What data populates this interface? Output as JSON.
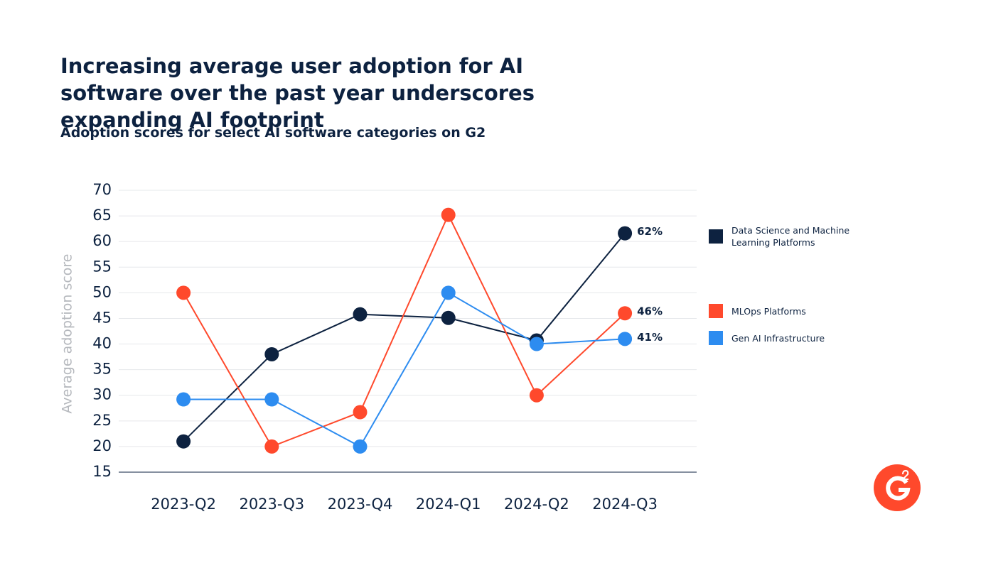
{
  "chart_data": {
    "type": "line",
    "title": "Increasing average user adoption for AI software over the past year underscores expanding AI footprint",
    "subtitle": "Adoption scores for select AI software categories on G2",
    "y_label": "Average adoption score",
    "categories": [
      "2023-Q2",
      "2023-Q3",
      "2023-Q4",
      "2024-Q1",
      "2024-Q2",
      "2024-Q3"
    ],
    "series": [
      {
        "name": "Data Science and Machine Learning Platforms",
        "color": "#0d2240",
        "values": [
          21,
          38,
          45.8,
          45.1,
          40.7,
          61.6
        ],
        "value_labels": [
          null,
          null,
          null,
          null,
          null,
          "62%"
        ]
      },
      {
        "name": "MLOps Platforms",
        "color": "#ff492c",
        "values": [
          50,
          20,
          26.7,
          65.2,
          30,
          46
        ],
        "value_labels": [
          null,
          null,
          null,
          null,
          null,
          "46%"
        ]
      },
      {
        "name": "Gen AI Infrastructure",
        "color": "#2d8cf0",
        "values": [
          29.2,
          29.2,
          20,
          50,
          40,
          41
        ],
        "value_labels": [
          null,
          null,
          null,
          null,
          null,
          "41%"
        ]
      }
    ],
    "ylim": [
      15,
      70
    ],
    "yticks": [
      15,
      20,
      25,
      30,
      35,
      40,
      45,
      50,
      55,
      60,
      65,
      70
    ],
    "grid": true
  }
}
